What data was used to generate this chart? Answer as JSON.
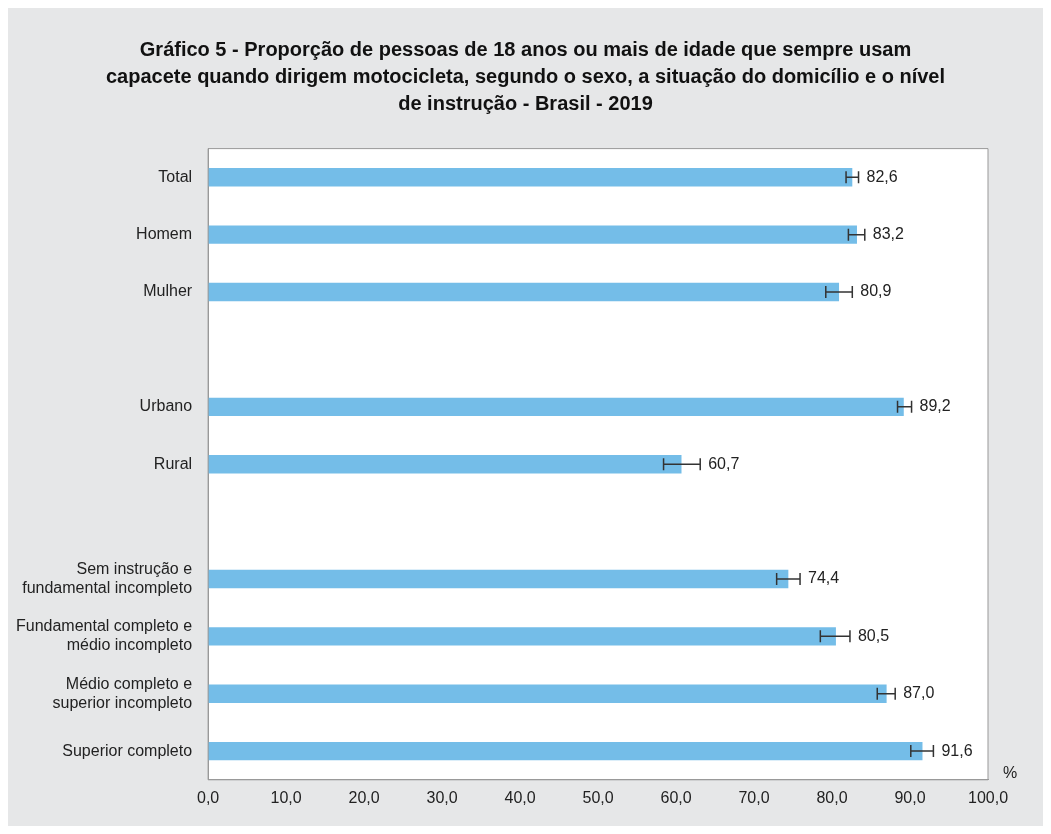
{
  "chart_data": {
    "type": "bar",
    "orientation": "horizontal",
    "title": "Gráfico 5 - Proporção de pessoas de 18 anos ou mais de idade que sempre usam capacete quando dirigem motocicleta, segundo o sexo, a situação do domicílio e o nível de instrução - Brasil - 2019",
    "categories": [
      "Total",
      "Homem",
      "Mulher",
      null,
      "Urbano",
      "Rural",
      null,
      "Sem instrução e\nfundamental incompleto",
      "Fundamental completo e\nmédio incompleto",
      "Médio completo e\nsuperior incompleto",
      "Superior completo"
    ],
    "values": [
      82.6,
      83.2,
      80.9,
      null,
      89.2,
      60.7,
      null,
      74.4,
      80.5,
      87.0,
      91.6
    ],
    "value_labels": [
      "82,6",
      "83,2",
      "80,9",
      null,
      "89,2",
      "60,7",
      null,
      "74,4",
      "80,5",
      "87,0",
      "91,6"
    ],
    "errors": [
      [
        81.8,
        83.4
      ],
      [
        82.1,
        84.2
      ],
      [
        79.2,
        82.6
      ],
      null,
      [
        88.4,
        90.2
      ],
      [
        58.4,
        63.1
      ],
      null,
      [
        72.9,
        75.9
      ],
      [
        78.5,
        82.3
      ],
      [
        85.8,
        88.1
      ],
      [
        90.1,
        93.0
      ]
    ],
    "color": "#74bde8",
    "xlabel": "%",
    "xlim": [
      0,
      100
    ],
    "xticks": [
      {
        "value": 0,
        "label": "0,0"
      },
      {
        "value": 10,
        "label": "10,0"
      },
      {
        "value": 20,
        "label": "20,0"
      },
      {
        "value": 30,
        "label": "30,0"
      },
      {
        "value": 40,
        "label": "40,0"
      },
      {
        "value": 50,
        "label": "50,0"
      },
      {
        "value": 60,
        "label": "60,0"
      },
      {
        "value": 70,
        "label": "70,0"
      },
      {
        "value": 80,
        "label": "80,0"
      },
      {
        "value": 90,
        "label": "90,0"
      },
      {
        "value": 100,
        "label": "100,0"
      }
    ],
    "grid": false,
    "legend": false
  }
}
